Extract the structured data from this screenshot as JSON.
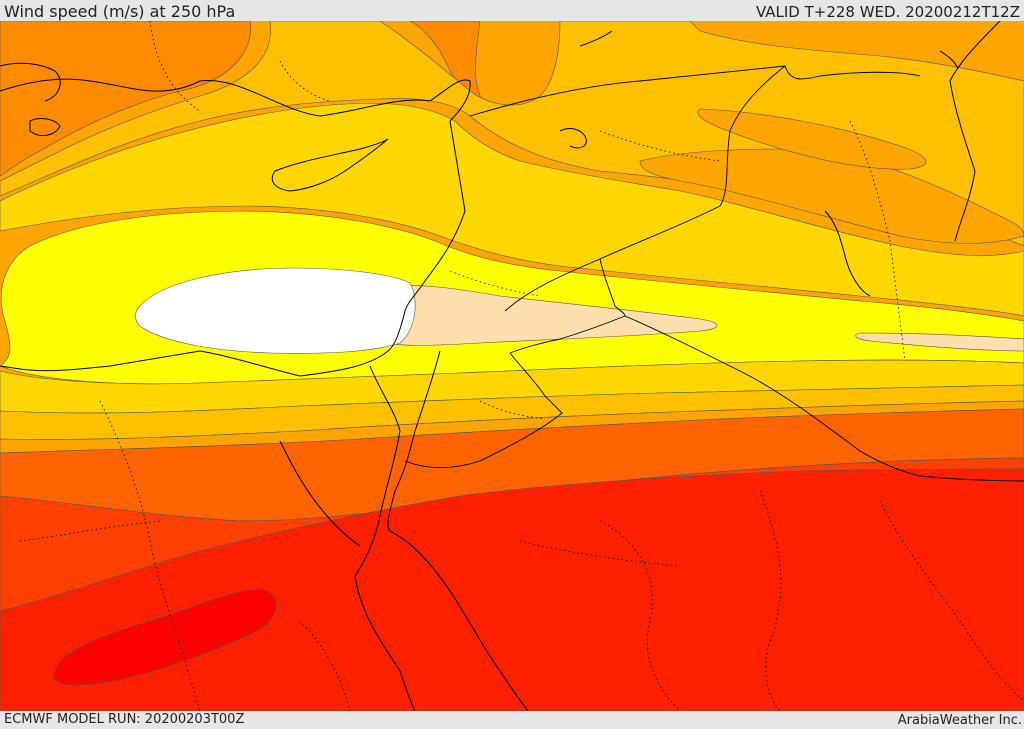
{
  "header": {
    "title": "Wind speed (m/s) at 250 hPa",
    "valid": "VALID T+228 WED. 20200212T12Z"
  },
  "footer": {
    "model_run": "ECMWF MODEL RUN: 20200203T00Z",
    "credit": "ArabiaWeather Inc."
  },
  "colors": {
    "band_orange_dark": "#ff8c00",
    "band_orange": "#ffa500",
    "band_amber": "#ffc000",
    "band_gold": "#ffd700",
    "band_yellow": "#ffff00",
    "band_peach": "#ffdead",
    "band_white": "#ffffff",
    "band_deep_orange": "#ff6400",
    "band_red_orange": "#ff4000",
    "band_red": "#ff2000",
    "band_core_red": "#ff0000",
    "coastline": "#000000",
    "contour_line": "#555555"
  }
}
